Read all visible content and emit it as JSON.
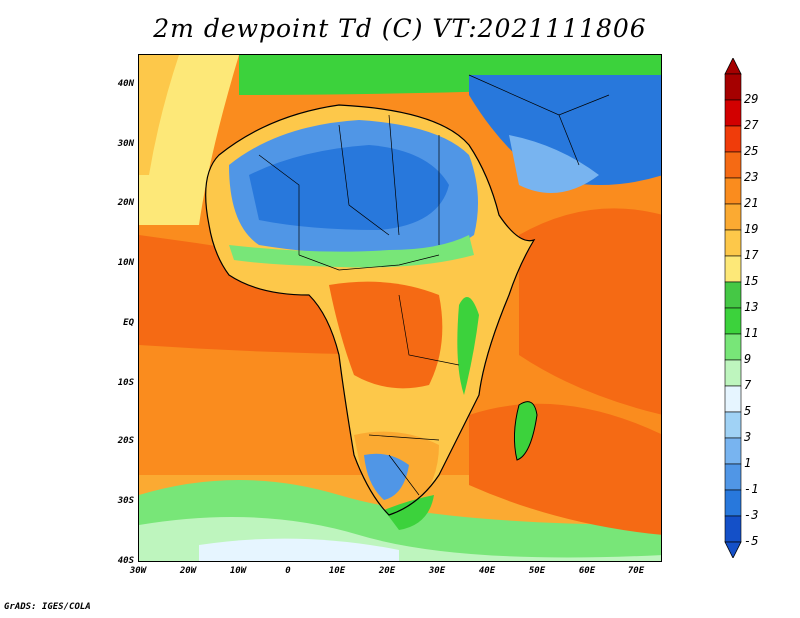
{
  "title": "2m dewpoint Td (C) VT:2021111806",
  "credit": "GrADS: IGES/COLA",
  "axes": {
    "lat_labels": [
      "40N",
      "30N",
      "20N",
      "10N",
      "EQ",
      "10S",
      "20S",
      "30S",
      "40S"
    ],
    "lon_labels": [
      "30W",
      "20W",
      "10W",
      "0",
      "10E",
      "20E",
      "30E",
      "40E",
      "50E",
      "60E",
      "70E"
    ]
  },
  "colorbar": {
    "labels": [
      "29",
      "27",
      "25",
      "23",
      "21",
      "19",
      "17",
      "15",
      "13",
      "11",
      "9",
      "7",
      "5",
      "3",
      "1",
      "-1",
      "-3",
      "-5"
    ],
    "colors": [
      "#a50000",
      "#d20000",
      "#f03c0a",
      "#f56a14",
      "#fa8c1e",
      "#fbaa32",
      "#fdc84a",
      "#fde878",
      "#45c845",
      "#3cd23c",
      "#78e678",
      "#bef5be",
      "#e6f5ff",
      "#a0d2f5",
      "#78b4f0",
      "#5096e6",
      "#2878dc",
      "#1450c8"
    ]
  }
}
